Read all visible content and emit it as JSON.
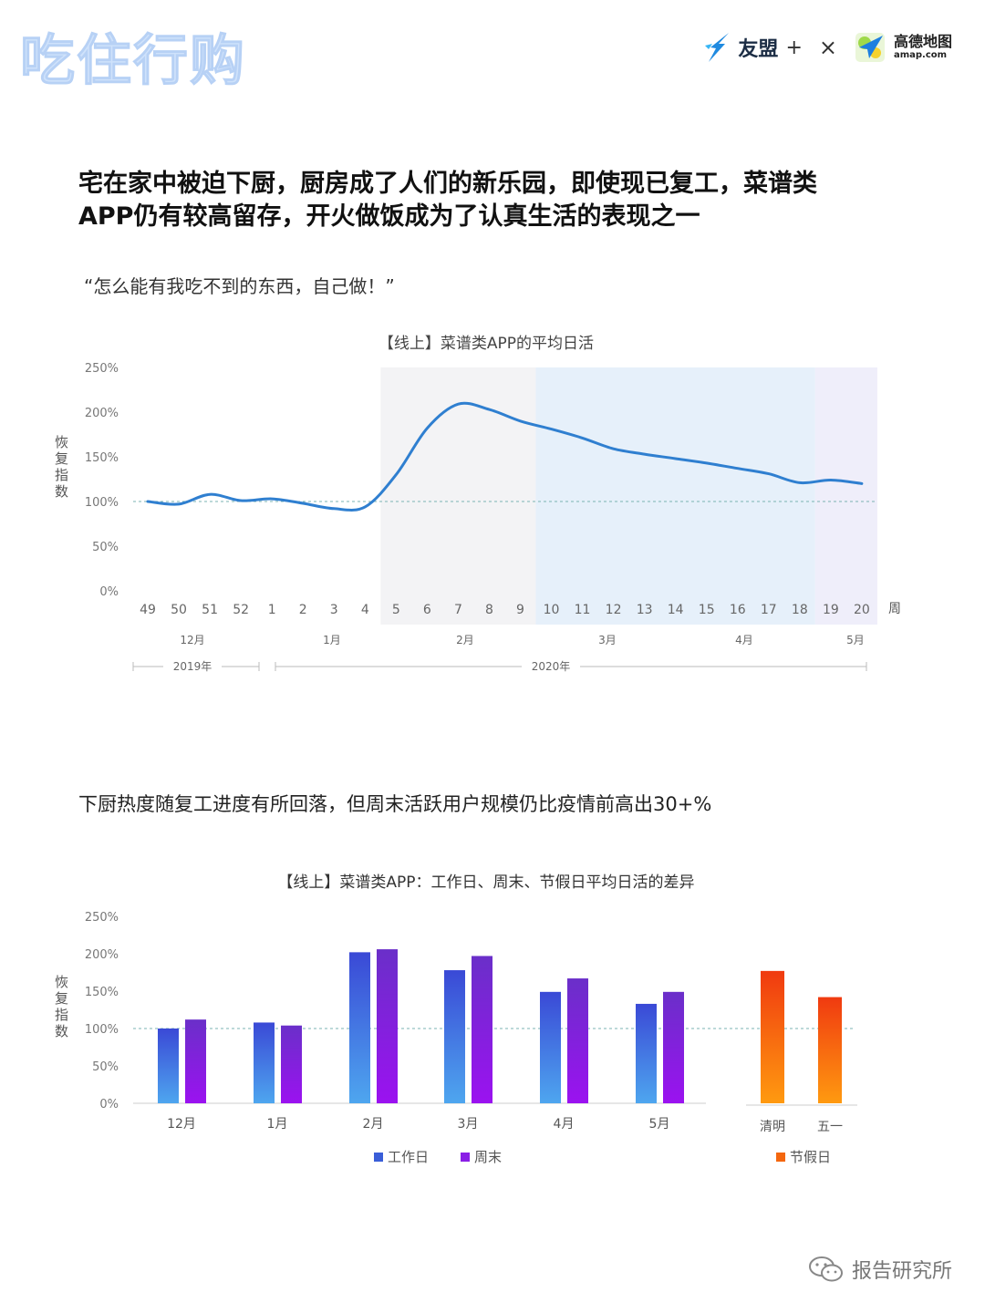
{
  "header": {
    "brand_title": "吃住行购",
    "umeng_name": "友盟",
    "plus": "+",
    "times": "×",
    "amap_name": "高德地图",
    "amap_url": "amap.com"
  },
  "headline_line1": "宅在家中被迫下厨，厨房成了人们的新乐园，即使现已复工，菜谱类",
  "headline_line2": "APP仍有较高留存，开火做饭成为了认真生活的表现之一",
  "quote": "“怎么能有我吃不到的东西，自己做！”",
  "subhead": "下厨热度随复工进度有所回落，但周末活跃用户规模仍比疫情前高出30+%",
  "watermark": "报告研究所",
  "colors": {
    "line": "#2f7fd0",
    "weekday_top": "#3a49d6",
    "weekday_bottom": "#4ea6ef",
    "weekend_top": "#6a2fc9",
    "weekend_bottom": "#9b12f0",
    "holiday_top": "#f03a10",
    "holiday_bottom": "#ff9a10",
    "band_gray": "#f3f3f5",
    "band_blue": "#e6f0fa",
    "band_lilac": "#efeefa",
    "baseline": "#7bb3b3"
  },
  "chart_data": [
    {
      "type": "line",
      "title": "【线上】菜谱类APP的平均日活",
      "ylabel": "恢复指数",
      "x_unit_label": "周",
      "x": [
        "49",
        "50",
        "51",
        "52",
        "1",
        "2",
        "3",
        "4",
        "5",
        "6",
        "7",
        "8",
        "9",
        "10",
        "11",
        "12",
        "13",
        "14",
        "15",
        "16",
        "17",
        "18",
        "19",
        "20"
      ],
      "values": [
        100,
        97,
        108,
        101,
        103,
        98,
        92,
        94,
        130,
        182,
        209,
        203,
        190,
        181,
        171,
        159,
        153,
        148,
        143,
        137,
        131,
        121,
        124,
        120
      ],
      "ylim": [
        0,
        250
      ],
      "yticks": [
        "0%",
        "50%",
        "100%",
        "150%",
        "200%",
        "250%"
      ],
      "month_labels": [
        "12月",
        "1月",
        "2月",
        "3月",
        "4月",
        "5月"
      ],
      "year_labels": [
        "2019年",
        "2020年"
      ],
      "baseline": 100
    },
    {
      "type": "bar",
      "title": "【线上】菜谱类APP：工作日、周末、节假日平均日活的差异",
      "ylabel": "恢复指数",
      "categories": [
        "12月",
        "1月",
        "2月",
        "3月",
        "4月",
        "5月"
      ],
      "series": [
        {
          "name": "工作日",
          "values": [
            100,
            108,
            202,
            178,
            149,
            133
          ]
        },
        {
          "name": "周末",
          "values": [
            112,
            104,
            206,
            197,
            167,
            149
          ]
        }
      ],
      "holiday_categories": [
        "清明",
        "五一"
      ],
      "holiday_series": {
        "name": "节假日",
        "values": [
          177,
          142
        ]
      },
      "ylim": [
        0,
        250
      ],
      "yticks": [
        "0%",
        "50%",
        "100%",
        "150%",
        "200%",
        "250%"
      ],
      "baseline": 100
    }
  ]
}
